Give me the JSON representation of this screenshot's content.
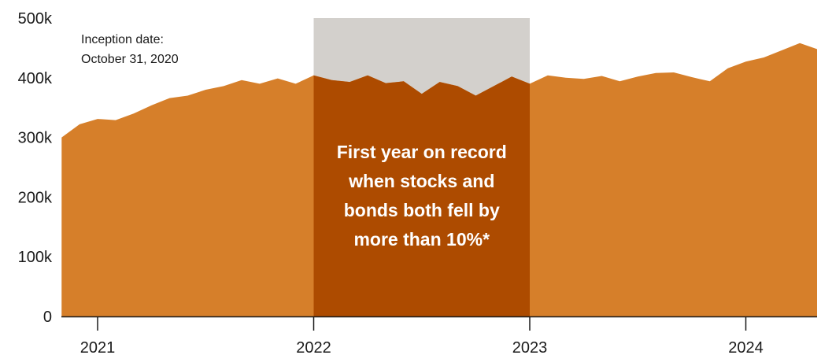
{
  "chart_data": {
    "type": "area",
    "x_start": "2020-11",
    "x_step": "1 month",
    "values": [
      300000,
      322000,
      331000,
      329000,
      340000,
      354000,
      366000,
      370000,
      380000,
      386000,
      396000,
      390000,
      399000,
      390000,
      404000,
      396000,
      393000,
      404000,
      391000,
      394000,
      373000,
      393000,
      386000,
      370000,
      386000,
      402000,
      390000,
      404000,
      400000,
      398000,
      403000,
      394000,
      402000,
      408000,
      409000,
      401000,
      394000,
      416000,
      427000,
      434000,
      446000,
      458000,
      448000
    ],
    "ylim": [
      0,
      500000
    ],
    "yticks": [
      {
        "value": 0,
        "label": "0"
      },
      {
        "value": 100000,
        "label": "100k"
      },
      {
        "value": 200000,
        "label": "200k"
      },
      {
        "value": 300000,
        "label": "300k"
      },
      {
        "value": 400000,
        "label": "400k"
      },
      {
        "value": 500000,
        "label": "500k"
      }
    ],
    "xticks": [
      {
        "date": "2021-01",
        "label": "2021"
      },
      {
        "date": "2022-01",
        "label": "2022"
      },
      {
        "date": "2023-01",
        "label": "2023"
      },
      {
        "date": "2024-01",
        "label": "2024"
      }
    ],
    "highlight": {
      "start": "2022-01",
      "end": "2023-01",
      "text": [
        "First year on record",
        "when stocks and",
        "bonds both fell  by",
        "more than 10%*"
      ]
    },
    "annotation": [
      "Inception date:",
      "October 31, 2020"
    ],
    "grid": false,
    "colors": {
      "area": "#d67f2a",
      "highlight_area": "#ad4b00",
      "highlight_bg": "#d3d0cc",
      "axis": "#1a1a1a",
      "text": "#1a1a1a",
      "highlight_text": "#ffffff"
    }
  }
}
